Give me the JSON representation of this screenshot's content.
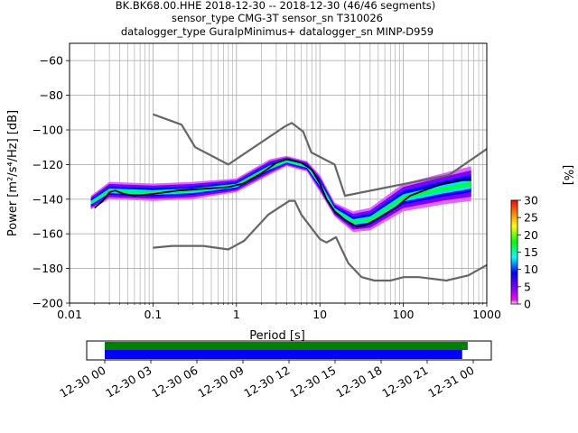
{
  "title_lines": [
    "BK.BK68.00.HHE   2018-12-30 -- 2018-12-30  (46/46 segments)",
    "sensor_type CMG-3T sensor_sn T310026",
    "datalogger_type GuralpMinimus+ datalogger_sn MINP-D959"
  ],
  "chart_data": {
    "type": "heatmap",
    "title": "BK.BK68.00.HHE   2018-12-30 -- 2018-12-30  (46/46 segments)",
    "xlabel": "Period [s]",
    "ylabel": "Power [m²/s⁴/Hz] [dB]",
    "xscale": "log",
    "xlim": [
      0.01,
      1000
    ],
    "ylim": [
      -200,
      -50
    ],
    "grid": true,
    "x_ticks": [
      {
        "value": 0.01,
        "label": "0.01"
      },
      {
        "value": 0.1,
        "label": "0.1"
      },
      {
        "value": 1,
        "label": "1"
      },
      {
        "value": 10,
        "label": "10"
      },
      {
        "value": 100,
        "label": "100"
      },
      {
        "value": 1000,
        "label": "1000"
      }
    ],
    "y_ticks": [
      {
        "value": -60,
        "label": "−60"
      },
      {
        "value": -80,
        "label": "−80"
      },
      {
        "value": -100,
        "label": "−100"
      },
      {
        "value": -120,
        "label": "−120"
      },
      {
        "value": -140,
        "label": "−140"
      },
      {
        "value": -160,
        "label": "−160"
      },
      {
        "value": -180,
        "label": "−180"
      },
      {
        "value": -200,
        "label": "−200"
      }
    ],
    "colorbar": {
      "label": "[%]",
      "min": 0,
      "max": 30,
      "ticks": [
        "0",
        "5",
        "10",
        "15",
        "20",
        "25",
        "30"
      ],
      "colors": [
        "#ffffff",
        "#ff00ff",
        "#8000ff",
        "#0000ff",
        "#00ffff",
        "#00ff00",
        "#ffff00",
        "#ff8000",
        "#ff0000"
      ]
    },
    "series": [
      {
        "kind": "noise_model_high",
        "color": "#666666",
        "points": [
          [
            0.1,
            -91
          ],
          [
            0.22,
            -97
          ],
          [
            0.32,
            -110
          ],
          [
            0.8,
            -120
          ],
          [
            3.8,
            -98
          ],
          [
            4.6,
            -96
          ],
          [
            6.3,
            -101
          ],
          [
            7.9,
            -113
          ],
          [
            15,
            -120
          ],
          [
            20,
            -138
          ],
          [
            354,
            -126
          ],
          [
            1000,
            -111
          ]
        ]
      },
      {
        "kind": "noise_model_low",
        "color": "#666666",
        "points": [
          [
            0.1,
            -168
          ],
          [
            0.17,
            -167
          ],
          [
            0.4,
            -167
          ],
          [
            0.8,
            -169
          ],
          [
            1.24,
            -164
          ],
          [
            2.4,
            -149
          ],
          [
            4.3,
            -141
          ],
          [
            5,
            -141
          ],
          [
            6,
            -149
          ],
          [
            10,
            -163
          ],
          [
            12,
            -165
          ],
          [
            15.6,
            -162
          ],
          [
            21.9,
            -177
          ],
          [
            31.6,
            -185
          ],
          [
            45,
            -187
          ],
          [
            70,
            -187
          ],
          [
            101,
            -185
          ],
          [
            154,
            -185
          ],
          [
            328,
            -187
          ],
          [
            600,
            -184
          ],
          [
            1000,
            -178
          ]
        ]
      },
      {
        "kind": "mode",
        "color": "#000000",
        "points": [
          [
            0.02,
            -145
          ],
          [
            0.025,
            -141
          ],
          [
            0.03,
            -136
          ],
          [
            0.035,
            -135
          ],
          [
            0.045,
            -137
          ],
          [
            0.06,
            -138
          ],
          [
            0.1,
            -137
          ],
          [
            0.2,
            -135
          ],
          [
            0.4,
            -134
          ],
          [
            0.8,
            -133
          ],
          [
            1.2,
            -131
          ],
          [
            2,
            -125
          ],
          [
            3,
            -119
          ],
          [
            4,
            -117
          ],
          [
            5,
            -118
          ],
          [
            6,
            -119
          ],
          [
            7,
            -121
          ],
          [
            8,
            -123
          ],
          [
            10,
            -131
          ],
          [
            12,
            -140
          ],
          [
            15,
            -147
          ],
          [
            20,
            -152
          ],
          [
            28,
            -156
          ],
          [
            35,
            -155
          ],
          [
            50,
            -151
          ],
          [
            80,
            -145
          ],
          [
            120,
            -138
          ],
          [
            200,
            -134
          ],
          [
            300,
            -131
          ],
          [
            500,
            -129
          ],
          [
            650,
            -129
          ]
        ]
      }
    ],
    "density_band": [
      {
        "x": 0.018,
        "low": -146,
        "high": -138
      },
      {
        "x": 0.03,
        "low": -140,
        "high": -130
      },
      {
        "x": 0.1,
        "low": -141,
        "high": -131
      },
      {
        "x": 0.3,
        "low": -140,
        "high": -130
      },
      {
        "x": 1,
        "low": -136,
        "high": -128
      },
      {
        "x": 2.5,
        "low": -126,
        "high": -117
      },
      {
        "x": 4,
        "low": -121,
        "high": -115
      },
      {
        "x": 7,
        "low": -124,
        "high": -118
      },
      {
        "x": 10,
        "low": -136,
        "high": -126
      },
      {
        "x": 15,
        "low": -150,
        "high": -142
      },
      {
        "x": 25,
        "low": -159,
        "high": -147
      },
      {
        "x": 40,
        "low": -158,
        "high": -145
      },
      {
        "x": 100,
        "low": -147,
        "high": -131
      },
      {
        "x": 300,
        "low": -143,
        "high": -125
      },
      {
        "x": 650,
        "low": -141,
        "high": -121
      }
    ]
  },
  "timeline": {
    "ticks": [
      "12-30 00",
      "12-30 03",
      "12-30 06",
      "12-30 09",
      "12-30 12",
      "12-30 15",
      "12-30 18",
      "12-30 21",
      "12-31 00"
    ],
    "data_coverage": [
      [
        0.0,
        0.985
      ]
    ],
    "processed_coverage": [
      [
        0.0,
        0.97
      ]
    ],
    "data_color": "#008000",
    "processed_color": "#0000ff"
  }
}
